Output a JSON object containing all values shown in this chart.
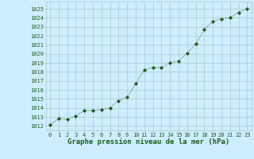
{
  "x": [
    0,
    1,
    2,
    3,
    4,
    5,
    6,
    7,
    8,
    9,
    10,
    11,
    12,
    13,
    14,
    15,
    16,
    17,
    18,
    19,
    20,
    21,
    22,
    23
  ],
  "y": [
    1012.1,
    1012.8,
    1012.7,
    1013.1,
    1013.7,
    1013.7,
    1013.8,
    1014.0,
    1014.8,
    1015.2,
    1016.7,
    1018.2,
    1018.5,
    1018.5,
    1019.0,
    1019.2,
    1020.1,
    1021.1,
    1022.7,
    1023.6,
    1023.9,
    1024.0,
    1024.6,
    1025.0
  ],
  "line_color": "#1a5c1a",
  "marker": "D",
  "marker_size": 2.2,
  "bg_color": "#cceeff",
  "grid_color": "#b0c8c8",
  "ylim": [
    1011.5,
    1025.8
  ],
  "xlim": [
    -0.5,
    23.5
  ],
  "yticks": [
    1012,
    1013,
    1014,
    1015,
    1016,
    1017,
    1018,
    1019,
    1020,
    1021,
    1022,
    1023,
    1024,
    1025
  ],
  "xticks": [
    0,
    1,
    2,
    3,
    4,
    5,
    6,
    7,
    8,
    9,
    10,
    11,
    12,
    13,
    14,
    15,
    16,
    17,
    18,
    19,
    20,
    21,
    22,
    23
  ],
  "xlabel": "Graphe pression niveau de la mer (hPa)",
  "xlabel_fontsize": 6.5,
  "tick_fontsize": 5.0,
  "tick_color": "#1a5c1a",
  "axis_color": "#1a5c1a"
}
